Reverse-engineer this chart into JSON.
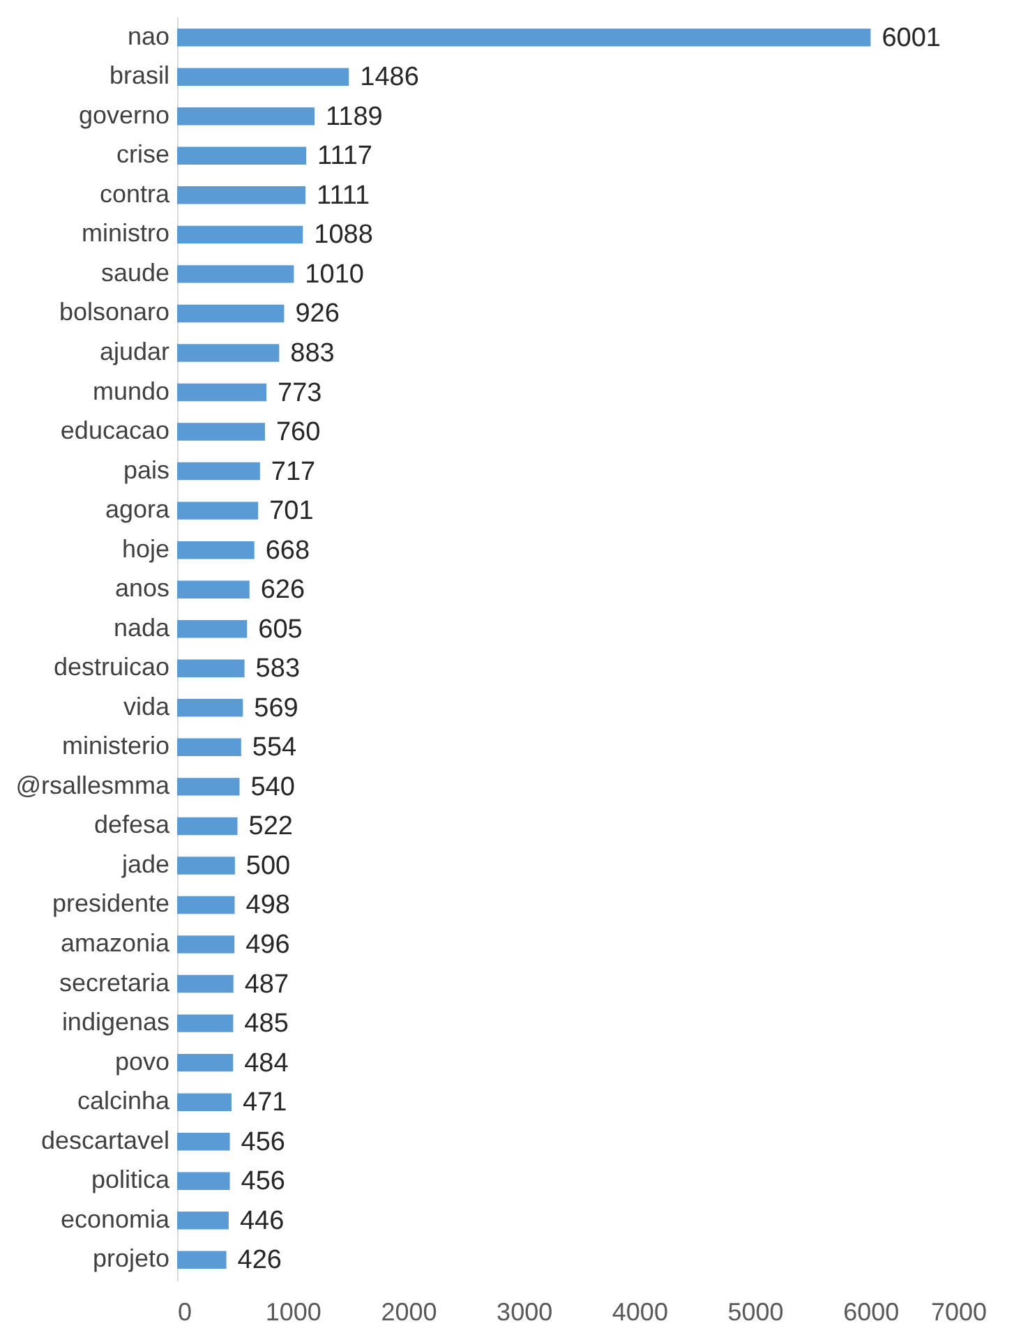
{
  "chart_data": {
    "type": "bar",
    "orientation": "horizontal",
    "data_labels": true,
    "grid": false,
    "categories": [
      "nao",
      "brasil",
      "governo",
      "crise",
      "contra",
      "ministro",
      "saude",
      "bolsonaro",
      "ajudar",
      "mundo",
      "educacao",
      "pais",
      "agora",
      "hoje",
      "anos",
      "nada",
      "destruicao",
      "vida",
      "ministerio",
      "@rsallesmma",
      "defesa",
      "jade",
      "presidente",
      "amazonia",
      "secretaria",
      "indigenas",
      "povo",
      "calcinha",
      "descartavel",
      "politica",
      "economia",
      "projeto"
    ],
    "values": [
      6001,
      1486,
      1189,
      1117,
      1111,
      1088,
      1010,
      926,
      883,
      773,
      760,
      717,
      701,
      668,
      626,
      605,
      583,
      569,
      554,
      540,
      522,
      500,
      498,
      496,
      487,
      485,
      484,
      471,
      456,
      456,
      446,
      426
    ],
    "color": "#5b9bd5",
    "xlim": [
      0,
      7000
    ],
    "xticks": [
      0,
      1000,
      2000,
      3000,
      4000,
      5000,
      6000,
      7000
    ]
  }
}
